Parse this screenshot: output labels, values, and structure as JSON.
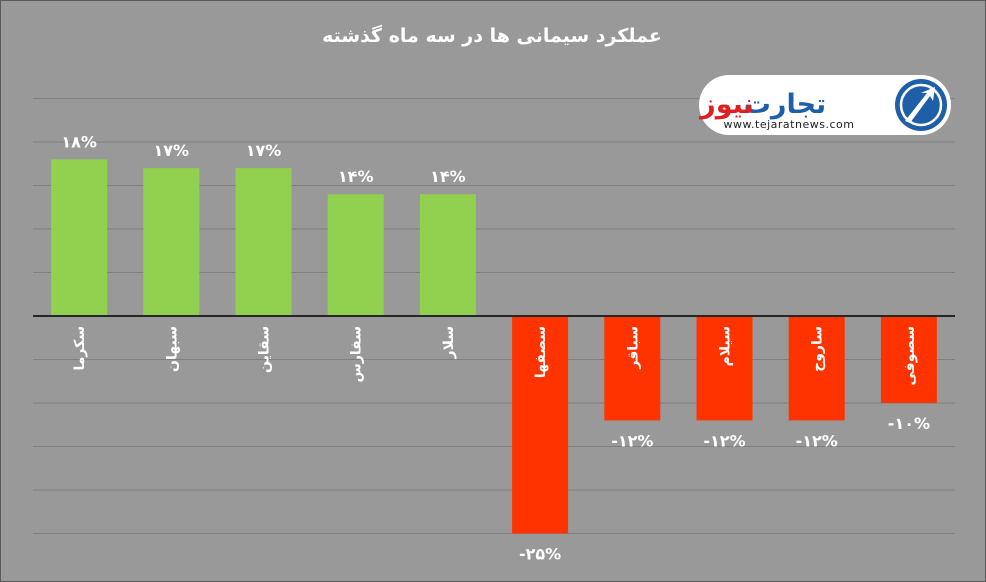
{
  "chart_data": {
    "type": "bar",
    "title": "عملکرد سیمانی ها در سه ماه گذشته",
    "categories": [
      "سکرما",
      "سبهان",
      "سقاین",
      "سفارس",
      "سلار",
      "سصفها",
      "سباقر",
      "سیلام",
      "ساروج",
      "سصوفی"
    ],
    "values": [
      18,
      17,
      17,
      14,
      14,
      -25,
      -12,
      -12,
      -12,
      -10
    ],
    "value_labels": [
      "۱۸%",
      "۱۷%",
      "۱۷%",
      "۱۴%",
      "۱۴%",
      "-۲۵%",
      "-۱۲%",
      "-۱۲%",
      "-۱۲%",
      "-۱۰%"
    ],
    "ylim": [
      -25,
      25
    ],
    "grid": true,
    "colors": {
      "positive": "#92d050",
      "negative": "#ff3300",
      "background": "#999999",
      "gridline": "#7f7f7f",
      "axis": "#262626"
    }
  },
  "logo": {
    "name_part1": "تجارت",
    "name_part2": "نیوز",
    "url": "www.tejaratnews.com",
    "icon": "tejarat-news-logo-icon",
    "colors": {
      "blue": "#1f5fa8",
      "red": "#e02020"
    }
  }
}
